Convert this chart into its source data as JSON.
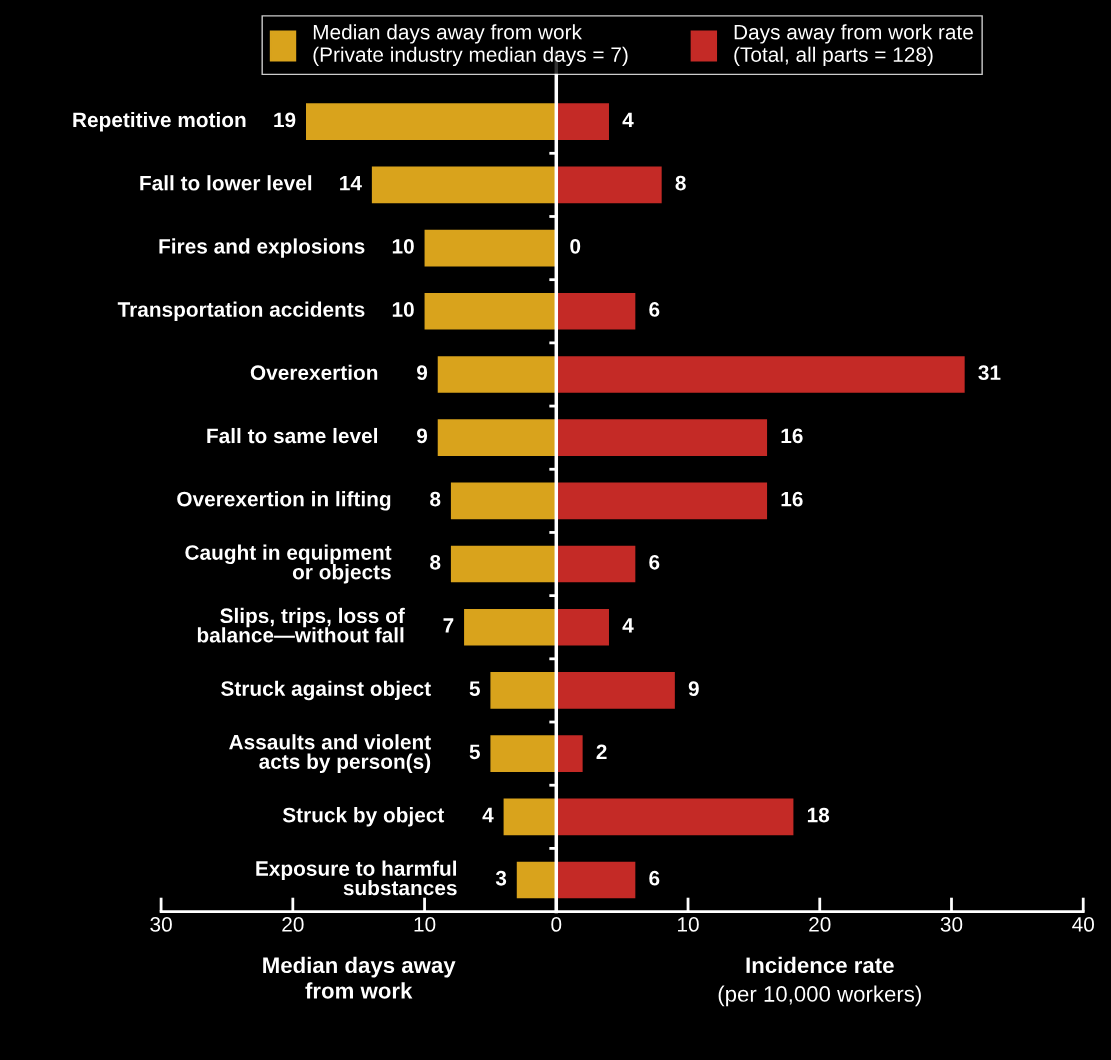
{
  "chart_data": [
    {
      "type": "bar",
      "orientation": "horizontal",
      "categories": [
        "Repetitive motion",
        "Fall to lower level",
        "Fires and explosions",
        "Transportation accidents",
        "Overexertion",
        "Fall to same level",
        "Overexertion in lifting",
        "Caught in equipment\nor objects",
        "Slips, trips, loss of\nbalance—without fall",
        "Struck against object",
        "Assaults and violent\nacts by person(s)",
        "Struck by object",
        "Exposure to harmful\nsubstances"
      ],
      "series": [
        {
          "name": "Median days away from work\n(Private industry median days = 7)",
          "color": "#d9a31c",
          "values": [
            19,
            14,
            10,
            10,
            9,
            9,
            8,
            8,
            7,
            5,
            5,
            4,
            3
          ]
        }
      ],
      "xlim": [
        30,
        0
      ],
      "xticks": [
        30,
        20,
        10,
        {
          "value": 0,
          "label": null
        }
      ],
      "xlabel": "Median days away\nfrom work",
      "data_labels": true,
      "legend": "top",
      "grid": false
    },
    {
      "type": "bar",
      "orientation": "horizontal",
      "categories": [
        null,
        null,
        null,
        null,
        null,
        null,
        null,
        null,
        null,
        null,
        null,
        null,
        null
      ],
      "series": [
        {
          "name": "Days away from work rate\n(Total, all parts = 128)",
          "color": "#c42a26",
          "values": [
            4,
            8,
            0,
            6,
            31,
            16,
            16,
            6,
            4,
            9,
            2,
            18,
            6
          ]
        }
      ],
      "xlim": [
        0,
        40
      ],
      "xticks": [
        0,
        10,
        20,
        30,
        40
      ],
      "xlabel": "Incidence rate",
      "annotations": [
        "(per 10,000 workers)"
      ],
      "data_labels": true,
      "legend": "top",
      "grid": false
    }
  ]
}
